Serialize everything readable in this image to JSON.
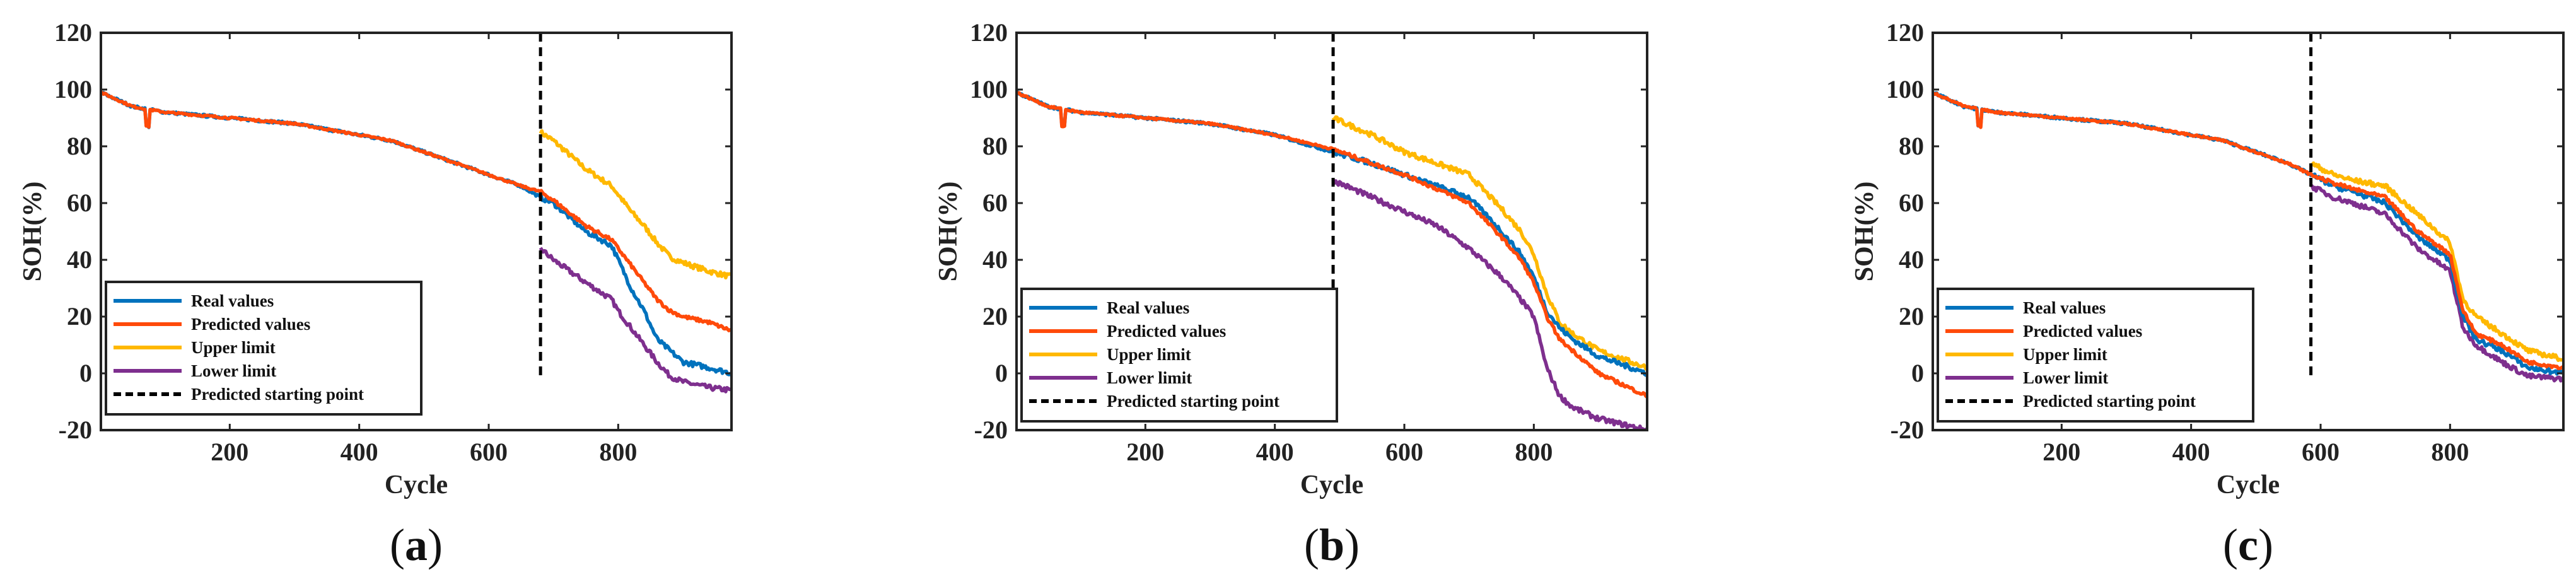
{
  "colors": {
    "real": "#0072BD",
    "predicted": "#FF4A0A",
    "upper": "#FFB800",
    "lower": "#7E2F8E",
    "start": "#000000"
  },
  "legend_labels": [
    "Real values",
    "Predicted values",
    "Upper limit",
    "Lower limit",
    "Predicted starting point"
  ],
  "chart_data": [
    {
      "type": "line",
      "panel": "(a)",
      "panel_letter": "a",
      "xlabel": "Cycle",
      "ylabel": "SOH(%)",
      "xlim": [
        1,
        975
      ],
      "ylim": [
        -20,
        120
      ],
      "xticks": [
        200,
        400,
        600,
        800
      ],
      "yticks": [
        -20,
        0,
        20,
        40,
        60,
        80,
        100,
        120
      ],
      "start_cycle": 680,
      "legend_position": "lower-left",
      "series": [
        {
          "name": "Real values",
          "x": [
            1,
            50,
            100,
            200,
            300,
            400,
            450,
            500,
            550,
            600,
            650,
            680,
            700,
            750,
            790,
            800,
            820,
            840,
            860,
            880,
            900,
            940,
            975
          ],
          "y": [
            99,
            94,
            92,
            90,
            88,
            84,
            82,
            78,
            74,
            70,
            66,
            62,
            60,
            50,
            45,
            40,
            30,
            22,
            12,
            8,
            4,
            2,
            0
          ]
        },
        {
          "name": "Predicted values",
          "x": [
            1,
            50,
            100,
            200,
            300,
            400,
            450,
            500,
            550,
            600,
            650,
            680,
            700,
            750,
            790,
            800,
            820,
            840,
            860,
            880,
            900,
            940,
            975
          ],
          "y": [
            99,
            94,
            92,
            90,
            88,
            84,
            82,
            78,
            74,
            70,
            66,
            64,
            61,
            52,
            47,
            44,
            38,
            32,
            26,
            22,
            20,
            18,
            15
          ]
        },
        {
          "name": "Upper limit",
          "x": [
            680,
            700,
            750,
            790,
            800,
            820,
            840,
            860,
            880,
            900,
            940,
            975
          ],
          "y": [
            85,
            82,
            72,
            66,
            63,
            57,
            52,
            46,
            41,
            39,
            36,
            34
          ]
        },
        {
          "name": "Lower limit",
          "x": [
            680,
            700,
            750,
            790,
            800,
            820,
            840,
            860,
            880,
            900,
            940,
            975
          ],
          "y": [
            44,
            40,
            32,
            26,
            22,
            16,
            10,
            4,
            -1,
            -3,
            -5,
            -6
          ]
        }
      ]
    },
    {
      "type": "line",
      "panel": "(b)",
      "panel_letter": "b",
      "xlabel": "Cycle",
      "ylabel": "SOH(%)",
      "xlim": [
        1,
        975
      ],
      "ylim": [
        -20,
        120
      ],
      "xticks": [
        200,
        400,
        600,
        800
      ],
      "yticks": [
        -20,
        0,
        20,
        40,
        60,
        80,
        100,
        120
      ],
      "start_cycle": 490,
      "legend_position": "lower-left",
      "series": [
        {
          "name": "Real values",
          "x": [
            1,
            50,
            100,
            200,
            300,
            400,
            490,
            550,
            600,
            650,
            700,
            750,
            780,
            800,
            820,
            840,
            860,
            900,
            975
          ],
          "y": [
            99,
            94,
            92,
            90,
            88,
            84,
            78,
            74,
            70,
            66,
            62,
            50,
            42,
            34,
            22,
            16,
            12,
            6,
            0
          ]
        },
        {
          "name": "Predicted values",
          "x": [
            1,
            50,
            100,
            200,
            300,
            400,
            490,
            550,
            600,
            650,
            700,
            750,
            780,
            800,
            820,
            840,
            860,
            900,
            975
          ],
          "y": [
            99,
            94,
            92,
            90,
            88,
            84,
            79,
            74,
            70,
            65,
            60,
            48,
            40,
            32,
            20,
            12,
            8,
            0,
            -8
          ]
        },
        {
          "name": "Upper limit",
          "x": [
            490,
            550,
            600,
            650,
            700,
            750,
            780,
            800,
            820,
            840,
            860,
            900,
            975
          ],
          "y": [
            90,
            84,
            78,
            74,
            70,
            58,
            50,
            42,
            28,
            18,
            14,
            8,
            2
          ]
        },
        {
          "name": "Lower limit",
          "x": [
            490,
            550,
            600,
            650,
            700,
            750,
            780,
            800,
            820,
            840,
            860,
            900,
            975
          ],
          "y": [
            68,
            62,
            57,
            52,
            44,
            34,
            26,
            20,
            2,
            -8,
            -12,
            -16,
            -20
          ]
        }
      ]
    },
    {
      "type": "line",
      "panel": "(c)",
      "panel_letter": "c",
      "xlabel": "Cycle",
      "ylabel": "SOH(%)",
      "xlim": [
        1,
        975
      ],
      "ylim": [
        -20,
        120
      ],
      "xticks": [
        200,
        400,
        600,
        800
      ],
      "yticks": [
        -20,
        0,
        20,
        40,
        60,
        80,
        100,
        120
      ],
      "start_cycle": 585,
      "legend_position": "lower-left",
      "series": [
        {
          "name": "Real values",
          "x": [
            1,
            50,
            100,
            200,
            300,
            400,
            450,
            500,
            550,
            585,
            620,
            650,
            700,
            750,
            800,
            820,
            840,
            880,
            920,
            975
          ],
          "y": [
            99,
            94,
            92,
            90,
            88,
            84,
            82,
            78,
            74,
            70,
            66,
            64,
            60,
            48,
            40,
            20,
            12,
            8,
            2,
            0
          ]
        },
        {
          "name": "Predicted values",
          "x": [
            1,
            50,
            100,
            200,
            300,
            400,
            450,
            500,
            550,
            585,
            620,
            650,
            700,
            750,
            800,
            820,
            840,
            880,
            920,
            975
          ],
          "y": [
            99,
            94,
            92,
            90,
            88,
            84,
            82,
            78,
            74,
            70,
            67,
            65,
            62,
            50,
            42,
            22,
            14,
            10,
            4,
            2
          ]
        },
        {
          "name": "Upper limit",
          "x": [
            585,
            620,
            650,
            700,
            750,
            800,
            820,
            840,
            880,
            920,
            975
          ],
          "y": [
            74,
            70,
            68,
            66,
            56,
            46,
            26,
            20,
            14,
            8,
            5
          ]
        },
        {
          "name": "Lower limit",
          "x": [
            585,
            620,
            650,
            700,
            750,
            800,
            820,
            840,
            880,
            920,
            975
          ],
          "y": [
            66,
            62,
            60,
            56,
            44,
            36,
            16,
            10,
            4,
            -1,
            -2
          ]
        }
      ]
    }
  ]
}
